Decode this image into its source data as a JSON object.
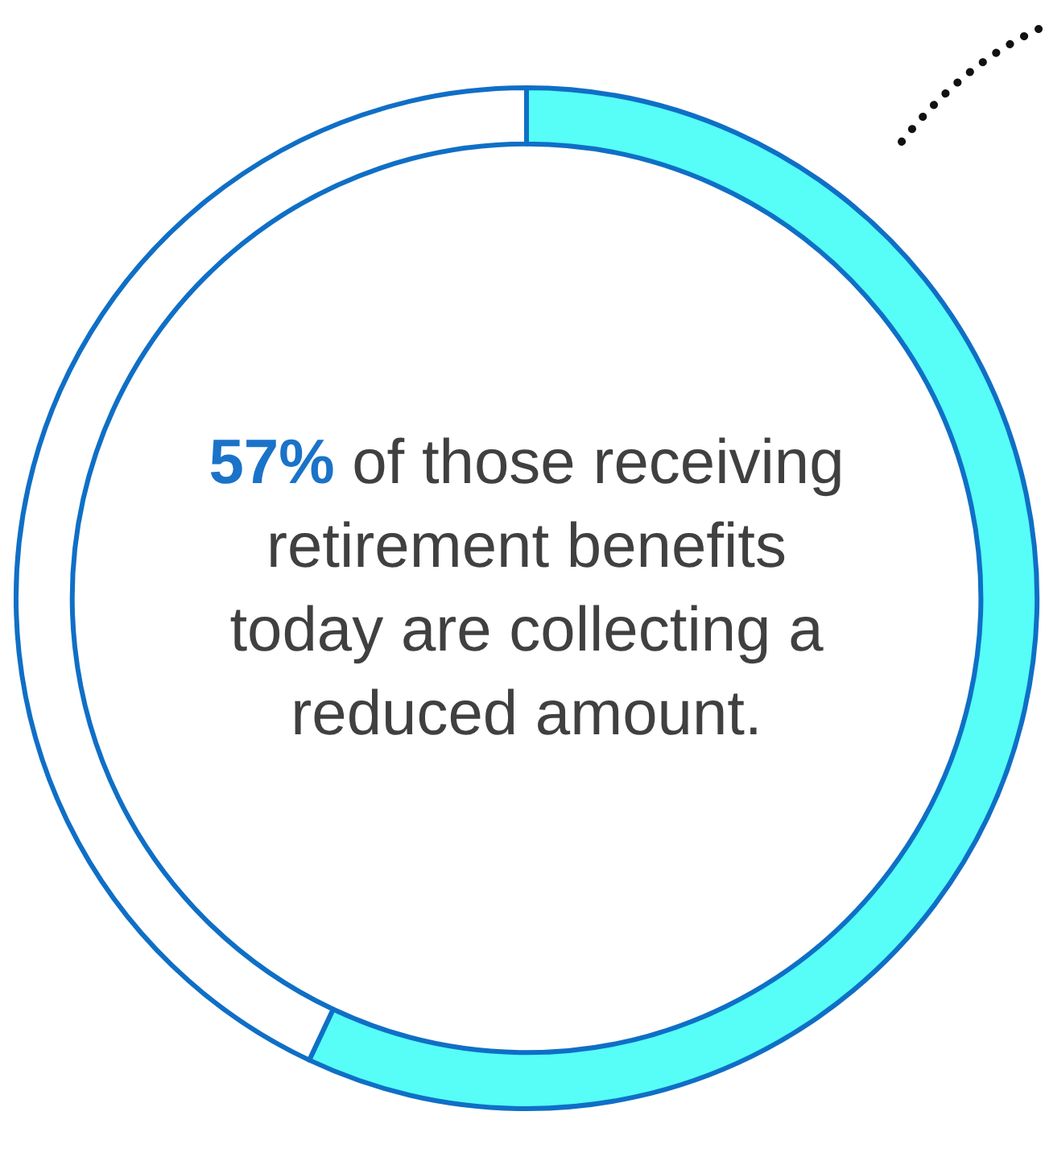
{
  "chart_data": {
    "type": "donut",
    "categories": [
      null,
      null
    ],
    "values": [
      57,
      43
    ],
    "colors": [
      "#57fdf7",
      "#ffffff"
    ],
    "annotations": [
      "57%",
      "of those receiving retirement benefits today are collecting a reduced amount."
    ]
  }
}
